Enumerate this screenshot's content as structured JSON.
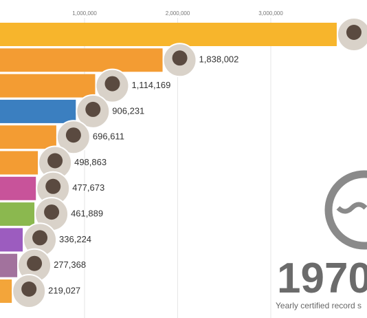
{
  "chart_data": {
    "type": "bar",
    "orientation": "horizontal",
    "values": [
      3708000,
      1838002,
      1114169,
      906231,
      696611,
      498863,
      477673,
      461889,
      336224,
      277368,
      219027
    ],
    "value_labels": [
      null,
      "1,838,002",
      "1,114,169",
      "906,231",
      "696,611",
      "498,863",
      "477,673",
      "461,889",
      "336,224",
      "277,368",
      "219,027"
    ],
    "colors": [
      "#f7b52c",
      "#f39c33",
      "#f39c33",
      "#3b7fc0",
      "#f39c33",
      "#f39c33",
      "#c8539a",
      "#8bb84f",
      "#9c5cbf",
      "#a2729d",
      "#f3a53a"
    ],
    "xlim": [
      0,
      4033000
    ],
    "xticks": [
      {
        "value": 1000000,
        "label": "1,000,000"
      },
      {
        "value": 2000000,
        "label": "2,000,000"
      },
      {
        "value": 3000000,
        "label": "3,000,000"
      }
    ],
    "grid": true,
    "year": "1970",
    "caption": "Yearly certified record s"
  }
}
